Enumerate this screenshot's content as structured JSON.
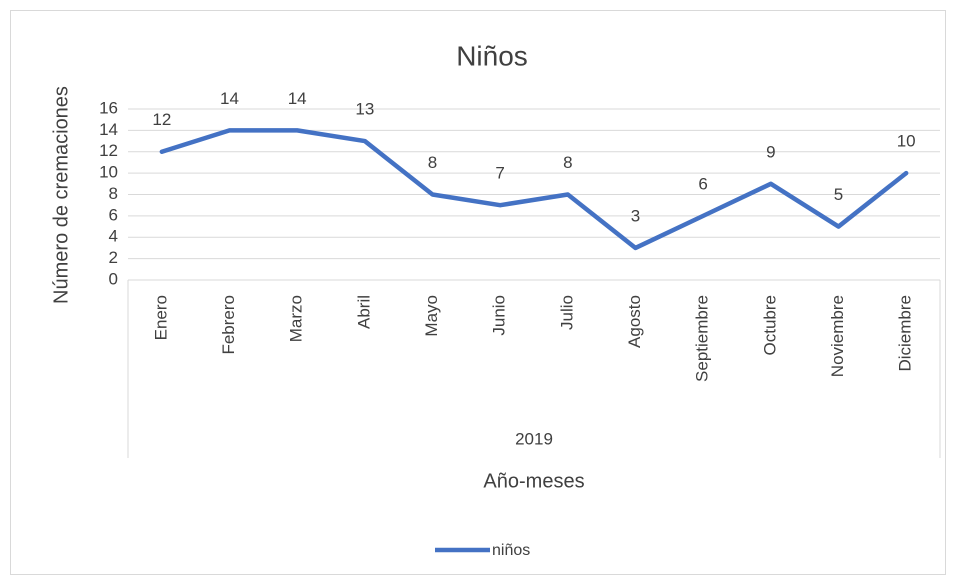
{
  "chart_data": {
    "type": "line",
    "title": "Niños",
    "categories": [
      "Enero",
      "Febrero",
      "Marzo",
      "Abril",
      "Mayo",
      "Junio",
      "Julio",
      "Agosto",
      "Septiembre",
      "Octubre",
      "Noviembre",
      "Diciembre"
    ],
    "category_group": "2019",
    "series": [
      {
        "name": "niños",
        "color": "#4472c4",
        "values": [
          12,
          14,
          14,
          13,
          8,
          7,
          8,
          3,
          6,
          9,
          5,
          10
        ]
      }
    ],
    "ylim": [
      0,
      16
    ],
    "yticks": [
      0,
      2,
      4,
      6,
      8,
      10,
      12,
      14,
      16
    ],
    "grid": true,
    "y_label": "Número de cremaciones",
    "x_label": "Año-meses",
    "legend": "bottom"
  }
}
